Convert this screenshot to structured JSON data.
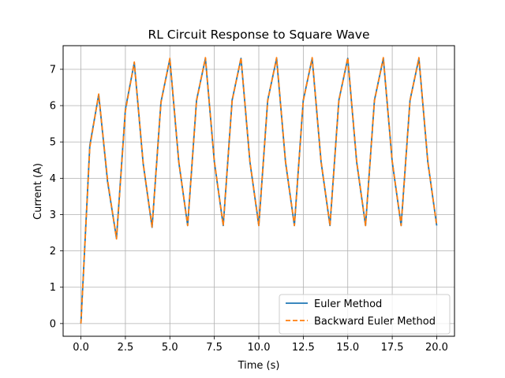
{
  "chart_data": {
    "type": "line",
    "title": "RL Circuit Response to Square Wave",
    "xlabel": "Time (s)",
    "ylabel": "Current (A)",
    "xlim": [
      -1.0,
      21.0
    ],
    "ylim": [
      -0.35,
      7.65
    ],
    "xticks": [
      0.0,
      2.5,
      5.0,
      7.5,
      10.0,
      12.5,
      15.0,
      17.5,
      20.0
    ],
    "xtick_labels": [
      "0.0",
      "2.5",
      "5.0",
      "7.5",
      "10.0",
      "12.5",
      "15.0",
      "17.5",
      "20.0"
    ],
    "yticks": [
      0,
      1,
      2,
      3,
      4,
      5,
      6,
      7
    ],
    "ytick_labels": [
      "0",
      "1",
      "2",
      "3",
      "4",
      "5",
      "6",
      "7"
    ],
    "grid": true,
    "legend_position": "lower-right",
    "series": [
      {
        "name": "Euler Method",
        "color": "#1f77b4",
        "style": "solid",
        "x": [
          0,
          0.5,
          1,
          1.5,
          2,
          2.5,
          3,
          3.5,
          4,
          4.5,
          5,
          5.5,
          6,
          6.5,
          7,
          7.5,
          8,
          8.5,
          9,
          9.5,
          10,
          10.5,
          11,
          11.5,
          12,
          12.5,
          13,
          13.5,
          14,
          14.5,
          15,
          15.5,
          16,
          16.5,
          17,
          17.5,
          18,
          18.5,
          19,
          19.5,
          20
        ],
        "y": [
          0,
          4.9,
          6.3,
          3.9,
          2.35,
          5.9,
          7.18,
          4.4,
          2.65,
          6.1,
          7.28,
          4.45,
          2.7,
          6.15,
          7.3,
          4.45,
          2.7,
          6.15,
          7.3,
          4.45,
          2.7,
          6.15,
          7.3,
          4.45,
          2.7,
          6.15,
          7.3,
          4.45,
          2.7,
          6.15,
          7.3,
          4.45,
          2.7,
          6.15,
          7.3,
          4.45,
          2.7,
          6.15,
          7.3,
          4.45,
          2.7
        ]
      },
      {
        "name": "Backward Euler Method",
        "color": "#ff7f0e",
        "style": "dashed",
        "x": [
          0,
          0.5,
          1,
          1.5,
          2,
          2.5,
          3,
          3.5,
          4,
          4.5,
          5,
          5.5,
          6,
          6.5,
          7,
          7.5,
          8,
          8.5,
          9,
          9.5,
          10,
          10.5,
          11,
          11.5,
          12,
          12.5,
          13,
          13.5,
          14,
          14.5,
          15,
          15.5,
          16,
          16.5,
          17,
          17.5,
          18,
          18.5,
          19,
          19.5,
          20
        ],
        "y": [
          0,
          4.85,
          6.32,
          3.95,
          2.33,
          5.85,
          7.2,
          4.42,
          2.66,
          6.08,
          7.3,
          4.47,
          2.7,
          6.13,
          7.32,
          4.47,
          2.7,
          6.13,
          7.32,
          4.47,
          2.7,
          6.13,
          7.32,
          4.47,
          2.7,
          6.13,
          7.32,
          4.47,
          2.7,
          6.13,
          7.32,
          4.47,
          2.7,
          6.13,
          7.32,
          4.47,
          2.7,
          6.13,
          7.32,
          4.47,
          2.7
        ]
      }
    ]
  }
}
